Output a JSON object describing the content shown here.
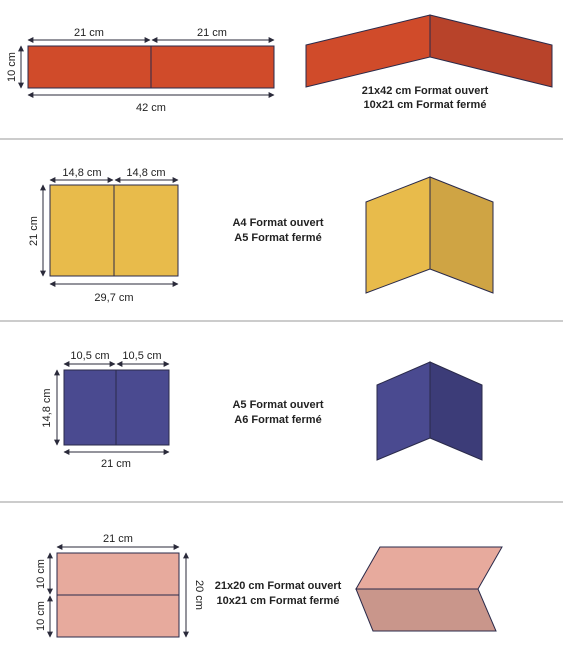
{
  "colors": {
    "orange": "#d04b2a",
    "orange_dark": "#b8432a",
    "yellow": "#e8bb4b",
    "yellow_dark": "#cfa444",
    "navy": "#4a4a90",
    "navy_dark": "#3c3c78",
    "pink": "#e7aa9d",
    "pink_dark": "#c9968b"
  },
  "sections": [
    {
      "dims": {
        "top_left": "21 cm",
        "top_right": "21 cm",
        "side": "10 cm",
        "bottom": "42 cm"
      },
      "caption": {
        "line1": "21x42 cm Format ouvert",
        "line2": "10x21 cm Format fermé"
      }
    },
    {
      "dims": {
        "top_left": "14,8 cm",
        "top_right": "14,8 cm",
        "side": "21 cm",
        "bottom": "29,7 cm"
      },
      "caption": {
        "line1": "A4 Format ouvert",
        "line2": "A5 Format fermé"
      }
    },
    {
      "dims": {
        "top_left": "10,5 cm",
        "top_right": "10,5 cm",
        "side": "14,8 cm",
        "bottom": "21 cm"
      },
      "caption": {
        "line1": "A5 Format ouvert",
        "line2": "A6 Format fermé"
      }
    },
    {
      "dims": {
        "top": "21 cm",
        "left_top": "10 cm",
        "left_bottom": "10 cm",
        "right": "20 cm"
      },
      "caption": {
        "line1": "21x20 cm Format ouvert",
        "line2": "10x21 cm Format fermé"
      }
    }
  ]
}
